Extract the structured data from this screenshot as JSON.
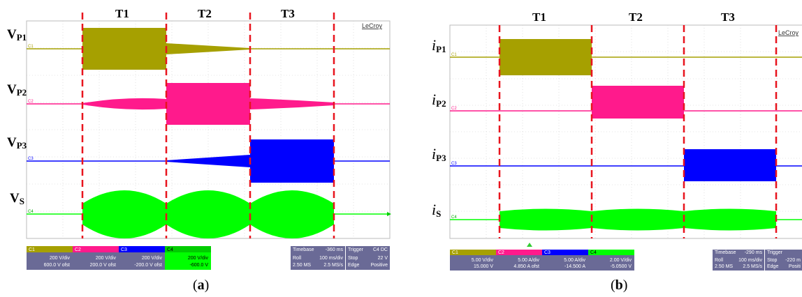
{
  "panel_a": {
    "caption_open": "(",
    "caption_letter": "a",
    "caption_close": ")",
    "phases": [
      "T1",
      "T2",
      "T3"
    ],
    "brand": "LeCroy",
    "traces": [
      {
        "label": "V",
        "sub": "P1",
        "tag": "C1",
        "color": "#a6a000"
      },
      {
        "label": "V",
        "sub": "P2",
        "tag": "C2",
        "color": "#ff1a8c"
      },
      {
        "label": "V",
        "sub": "P3",
        "tag": "C3",
        "color": "#0000ff"
      },
      {
        "label": "V",
        "sub": "S",
        "tag": "C4",
        "color": "#00ff00"
      }
    ],
    "channel_boxes": [
      {
        "tag": "C1",
        "line1": "200 V/div",
        "line2": "600.0 V ofst",
        "color": "#a6a000"
      },
      {
        "tag": "C2",
        "line1": "200 V/div",
        "line2": "200.0 V ofst",
        "color": "#ff1a8c"
      },
      {
        "tag": "C3",
        "line1": "200 V/div",
        "line2": "-200.0 V ofst",
        "color": "#0000ff"
      },
      {
        "tag": "C4",
        "line1": "200 V/div",
        "line2": "-600.0 V",
        "color": "#00ff00"
      }
    ],
    "timebase": {
      "label": "Timebase",
      "value": "-360 ms",
      "row1a": "Roll",
      "row1b": "100 ms/div",
      "row2a": "2.50 MS",
      "row2b": "2.5 MS/s"
    },
    "trigger": {
      "label": "Trigger",
      "tag": "C4 DC",
      "row1a": "Stop",
      "row1b": "22 V",
      "row2a": "Edge",
      "row2b": "Positive"
    }
  },
  "panel_b": {
    "caption_open": "(",
    "caption_letter": "b",
    "caption_close": ")",
    "phases": [
      "T1",
      "T2",
      "T3"
    ],
    "brand": "LeCroy",
    "traces": [
      {
        "label": "i",
        "sub": "P1",
        "tag": "C1",
        "color": "#a6a000"
      },
      {
        "label": "i",
        "sub": "P2",
        "tag": "C2",
        "color": "#ff1a8c"
      },
      {
        "label": "i",
        "sub": "P3",
        "tag": "C3",
        "color": "#0000ff"
      },
      {
        "label": "i",
        "sub": "S",
        "tag": "C4",
        "color": "#00ff00"
      }
    ],
    "channel_boxes": [
      {
        "tag": "C1",
        "line1": "5.00 V/div",
        "line2": "15.000 V",
        "color": "#a6a000"
      },
      {
        "tag": "C2",
        "line1": "5.00 A/div",
        "line2": "4.850 A ofst",
        "color": "#ff1a8c"
      },
      {
        "tag": "C3",
        "line1": "5.00 A/div",
        "line2": "-14.500 A",
        "color": "#0000ff"
      },
      {
        "tag": "C4",
        "line1": "2.00 V/div",
        "line2": "-5.0500 V",
        "color": "#00ff00"
      }
    ],
    "timebase": {
      "label": "Timebase",
      "value": "-290 ms",
      "row1a": "Roll",
      "row1b": "100 ms/div",
      "row2a": "2.50 MS",
      "row2b": "2.5 MS/s"
    },
    "trigger": {
      "label": "Trigger",
      "tag": "C4 DC",
      "row1a": "Stop",
      "row1b": "-220 m",
      "row2a": "Edge",
      "row2b": "Positi"
    }
  }
}
